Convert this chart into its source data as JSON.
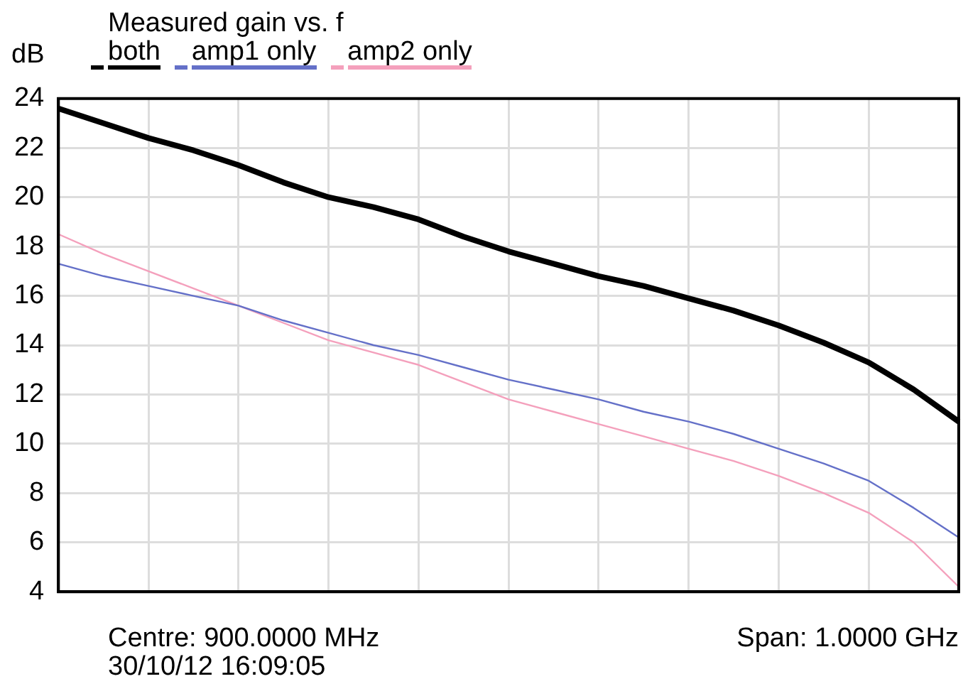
{
  "chart_data": {
    "type": "line",
    "title": "Measured gain vs. f",
    "ylabel": "dB",
    "annotations": [
      "Centre: 900.0000 MHz",
      "Span: 1.0000 GHz",
      "30/10/12 16:09:05"
    ],
    "categories": [
      null,
      null,
      null,
      null,
      null,
      null,
      null,
      null,
      null,
      null,
      null,
      null,
      null,
      null,
      null,
      null,
      null,
      null,
      null,
      null,
      null
    ],
    "series": [
      {
        "name": "both",
        "color": "#000000",
        "values": [
          23.6,
          23.0,
          22.4,
          21.9,
          21.3,
          20.6,
          20.0,
          19.6,
          19.1,
          18.4,
          17.8,
          17.3,
          16.8,
          16.4,
          15.9,
          15.4,
          14.8,
          14.1,
          13.3,
          12.2,
          10.9
        ]
      },
      {
        "name": "amp1 only",
        "color": "#6470c8",
        "values": [
          17.3,
          16.8,
          16.4,
          16.0,
          15.6,
          15.0,
          14.5,
          14.0,
          13.6,
          13.1,
          12.6,
          12.2,
          11.8,
          11.3,
          10.9,
          10.4,
          9.8,
          9.2,
          8.5,
          7.4,
          6.2
        ]
      },
      {
        "name": "amp2 only",
        "color": "#f4a0bc",
        "values": [
          18.5,
          17.7,
          17.0,
          16.3,
          15.6,
          14.9,
          14.2,
          13.7,
          13.2,
          12.5,
          11.8,
          11.3,
          10.8,
          10.3,
          9.8,
          9.3,
          8.7,
          8.0,
          7.2,
          6.0,
          4.2
        ]
      }
    ],
    "ylim": [
      4,
      24
    ],
    "yticks": [
      4,
      6,
      8,
      10,
      12,
      14,
      16,
      18,
      20,
      22,
      24
    ],
    "grid": true,
    "legend": "top left",
    "tick_labels": "y",
    "marker": "none",
    "line_style": "solid"
  }
}
